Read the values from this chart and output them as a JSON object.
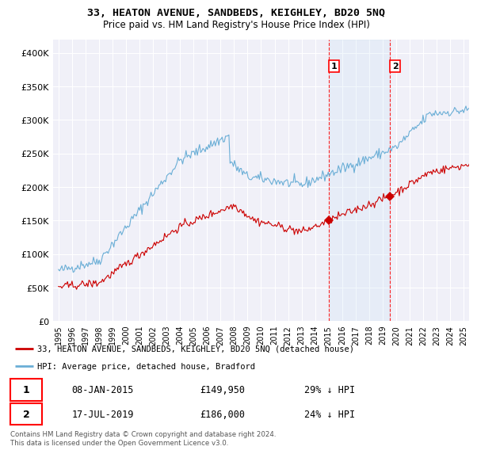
{
  "title": "33, HEATON AVENUE, SANDBEDS, KEIGHLEY, BD20 5NQ",
  "subtitle": "Price paid vs. HM Land Registry's House Price Index (HPI)",
  "ylabel_ticks": [
    "£0",
    "£50K",
    "£100K",
    "£150K",
    "£200K",
    "£250K",
    "£300K",
    "£350K",
    "£400K"
  ],
  "ytick_values": [
    0,
    50000,
    100000,
    150000,
    200000,
    250000,
    300000,
    350000,
    400000
  ],
  "ylim": [
    0,
    420000
  ],
  "legend_line1": "33, HEATON AVENUE, SANDBEDS, KEIGHLEY, BD20 5NQ (detached house)",
  "legend_line2": "HPI: Average price, detached house, Bradford",
  "sale1_date": "08-JAN-2015",
  "sale1_price": "£149,950",
  "sale1_note": "29% ↓ HPI",
  "sale2_date": "17-JUL-2019",
  "sale2_price": "£186,000",
  "sale2_note": "24% ↓ HPI",
  "footer": "Contains HM Land Registry data © Crown copyright and database right 2024.\nThis data is licensed under the Open Government Licence v3.0.",
  "hpi_color": "#6aaed6",
  "sale_color": "#cc0000",
  "marker1_x": 2015.04,
  "marker1_y": 149950,
  "marker2_x": 2019.54,
  "marker2_y": 186000,
  "vline1_x": 2015.04,
  "vline2_x": 2019.54,
  "xlim_left": 1994.6,
  "xlim_right": 2025.4,
  "background_color": "#ffffff",
  "plot_bg_color": "#f0f0f8"
}
